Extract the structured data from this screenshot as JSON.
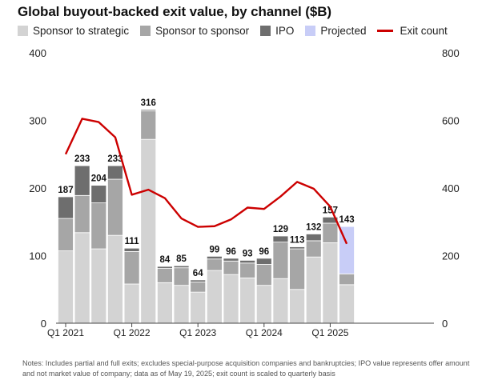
{
  "chart_data": {
    "type": "bar",
    "title": "Global buyout-backed exit value, by channel ($B)",
    "stacked": true,
    "categories": [
      "Q1 2021",
      "Q2 2021",
      "Q3 2021",
      "Q4 2021",
      "Q1 2022",
      "Q2 2022",
      "Q3 2022",
      "Q4 2022",
      "Q1 2023",
      "Q2 2023",
      "Q3 2023",
      "Q4 2023",
      "Q1 2024",
      "Q2 2024",
      "Q3 2024",
      "Q4 2024",
      "Q1 2025",
      "Q2 2025"
    ],
    "x_tick_labels": [
      "Q1 2021",
      "Q1 2022",
      "Q1 2023",
      "Q1 2024",
      "Q1 2025"
    ],
    "series": [
      {
        "name": "Sponsor to strategic",
        "color": "#d3d3d3",
        "values": [
          107,
          134,
          110,
          130,
          58,
          272,
          60,
          56,
          46,
          78,
          72,
          67,
          56,
          66,
          50,
          98,
          119,
          57
        ]
      },
      {
        "name": "Sponsor to sponsor",
        "color": "#a6a6a6",
        "values": [
          48,
          55,
          68,
          83,
          48,
          42,
          21,
          26,
          15,
          17,
          20,
          22,
          31,
          54,
          60,
          24,
          29,
          16
        ]
      },
      {
        "name": "IPO",
        "color": "#6e6e6e",
        "values": [
          32,
          44,
          26,
          20,
          5,
          2,
          3,
          3,
          3,
          4,
          4,
          4,
          9,
          9,
          3,
          10,
          9,
          0
        ]
      },
      {
        "name": "Projected",
        "color": "#c8cdf7",
        "values": [
          0,
          0,
          0,
          0,
          0,
          0,
          0,
          0,
          0,
          0,
          0,
          0,
          0,
          0,
          0,
          0,
          0,
          70
        ]
      }
    ],
    "totals": [
      187,
      233,
      204,
      233,
      111,
      316,
      84,
      85,
      64,
      99,
      96,
      93,
      96,
      129,
      113,
      132,
      157,
      143
    ],
    "line_series": {
      "name": "Exit count",
      "color": "#cc0000",
      "axis": "right",
      "values": [
        500,
        605,
        595,
        550,
        380,
        395,
        370,
        310,
        285,
        287,
        307,
        342,
        338,
        375,
        418,
        398,
        345,
        235
      ]
    },
    "ylim_left": [
      0,
      400
    ],
    "yticks_left": [
      0,
      100,
      200,
      300,
      400
    ],
    "ylim_right": [
      0,
      800
    ],
    "yticks_right": [
      0,
      200,
      400,
      600,
      800
    ],
    "grid": false,
    "legend_position": "top-left"
  },
  "notes": "Notes: Includes partial and full exits; excludes special-purpose acquisition companies and bankruptcies; IPO value represents offer amount and not market value of company; data as of May 19, 2025; exit count is scaled to quarterly basis"
}
